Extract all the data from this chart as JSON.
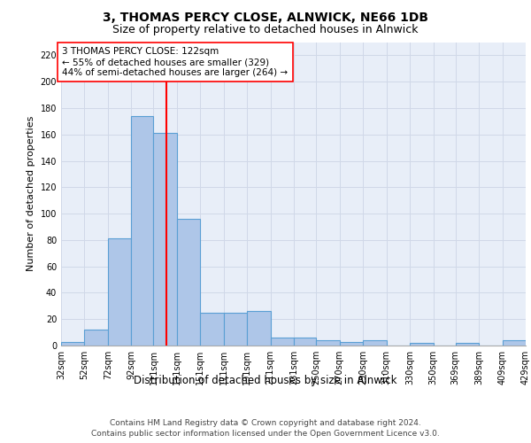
{
  "title": "3, THOMAS PERCY CLOSE, ALNWICK, NE66 1DB",
  "subtitle": "Size of property relative to detached houses in Alnwick",
  "xlabel": "Distribution of detached houses by size in Alnwick",
  "ylabel": "Number of detached properties",
  "bar_edges": [
    32,
    52,
    72,
    92,
    111,
    131,
    151,
    171,
    191,
    211,
    231,
    250,
    270,
    290,
    310,
    330,
    350,
    369,
    389,
    409,
    429
  ],
  "bar_heights": [
    3,
    12,
    81,
    174,
    161,
    96,
    25,
    25,
    26,
    6,
    6,
    4,
    3,
    4,
    0,
    2,
    0,
    2,
    0,
    4
  ],
  "bar_color": "#aec6e8",
  "bar_edgecolor": "#5a9fd4",
  "bar_linewidth": 0.8,
  "vline_x": 122,
  "vline_color": "red",
  "vline_linewidth": 1.5,
  "annotation_text": "3 THOMAS PERCY CLOSE: 122sqm\n← 55% of detached houses are smaller (329)\n44% of semi-detached houses are larger (264) →",
  "annotation_box_color": "white",
  "annotation_box_edgecolor": "red",
  "ylim": [
    0,
    230
  ],
  "yticks": [
    0,
    20,
    40,
    60,
    80,
    100,
    120,
    140,
    160,
    180,
    200,
    220
  ],
  "xtick_labels": [
    "32sqm",
    "52sqm",
    "72sqm",
    "92sqm",
    "111sqm",
    "131sqm",
    "151sqm",
    "171sqm",
    "191sqm",
    "211sqm",
    "231sqm",
    "250sqm",
    "270sqm",
    "290sqm",
    "310sqm",
    "330sqm",
    "350sqm",
    "369sqm",
    "389sqm",
    "409sqm",
    "429sqm"
  ],
  "grid_color": "#d0d8e8",
  "background_color": "#e8eef8",
  "footer_line1": "Contains HM Land Registry data © Crown copyright and database right 2024.",
  "footer_line2": "Contains public sector information licensed under the Open Government Licence v3.0.",
  "title_fontsize": 10,
  "subtitle_fontsize": 9,
  "ylabel_fontsize": 8,
  "xlabel_fontsize": 8.5,
  "tick_fontsize": 7,
  "annotation_fontsize": 7.5,
  "footer_fontsize": 6.5
}
